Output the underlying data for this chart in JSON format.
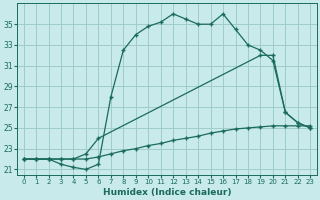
{
  "xlabel": "Humidex (Indice chaleur)",
  "bg_color": "#c8eaea",
  "grid_color": "#a0cccc",
  "line_color": "#1a6b5a",
  "xlim": [
    -0.5,
    23.5
  ],
  "ylim": [
    20.5,
    37.0
  ],
  "yticks": [
    21,
    23,
    25,
    27,
    29,
    31,
    33,
    35
  ],
  "xticks": [
    0,
    1,
    2,
    3,
    4,
    5,
    6,
    7,
    8,
    9,
    10,
    11,
    12,
    13,
    14,
    15,
    16,
    17,
    18,
    19,
    20,
    21,
    22,
    23
  ],
  "curve1_x": [
    0,
    1,
    2,
    3,
    4,
    5,
    6,
    7,
    8,
    9,
    10,
    11,
    12,
    13,
    14,
    15,
    16,
    17,
    18,
    19,
    20,
    21,
    22,
    23
  ],
  "curve1_y": [
    22.0,
    22.0,
    22.0,
    21.5,
    21.2,
    21.0,
    21.5,
    28.0,
    32.5,
    34.0,
    34.8,
    35.2,
    36.0,
    35.5,
    35.0,
    35.0,
    36.0,
    34.5,
    33.0,
    32.5,
    31.5,
    26.5,
    25.5,
    25.0
  ],
  "curve2_x": [
    0,
    1,
    2,
    3,
    4,
    5,
    6,
    19,
    20,
    21,
    22,
    23
  ],
  "curve2_y": [
    22.0,
    22.0,
    22.0,
    22.0,
    22.0,
    22.5,
    24.0,
    32.0,
    32.0,
    26.5,
    25.5,
    25.0
  ],
  "curve3_x": [
    0,
    1,
    2,
    3,
    4,
    5,
    6,
    7,
    8,
    9,
    10,
    11,
    12,
    13,
    14,
    15,
    16,
    17,
    18,
    19,
    20,
    21,
    22,
    23
  ],
  "curve3_y": [
    22.0,
    22.0,
    22.0,
    22.0,
    22.0,
    22.0,
    22.2,
    22.5,
    22.8,
    23.0,
    23.3,
    23.5,
    23.8,
    24.0,
    24.2,
    24.5,
    24.7,
    24.9,
    25.0,
    25.1,
    25.2,
    25.2,
    25.2,
    25.2
  ]
}
